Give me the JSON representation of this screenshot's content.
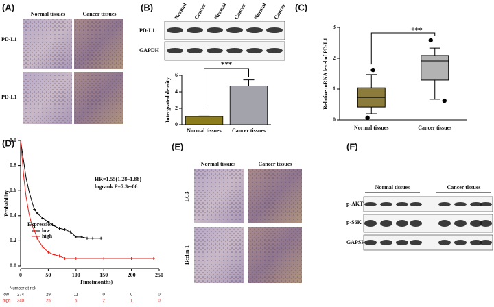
{
  "panel_a": {
    "label": "(A)",
    "columns": [
      "Normal tissues",
      "Cancer tissues"
    ],
    "rows": [
      "PD-L1",
      "PD-L1"
    ]
  },
  "panel_b": {
    "label": "(B)",
    "lanes": [
      "Normal",
      "Cancer",
      "Normal",
      "Cancer",
      "Normal",
      "Cancer"
    ],
    "rows": [
      "PD-L1",
      "GAPDH"
    ]
  },
  "panel_c": {
    "label": "(C)"
  },
  "panel_d": {
    "label": "(D)"
  },
  "panel_e": {
    "label": "(E)",
    "columns": [
      "Normal tissues",
      "Cancer tissues"
    ],
    "rows": [
      "LC3",
      "Beclin-1"
    ]
  },
  "panel_f": {
    "label": "(F)",
    "groups": [
      "Normal tissues",
      "Cancer tissues"
    ],
    "rows": [
      "p-AKT",
      "p-S6K",
      "GAPSH"
    ]
  },
  "chart_data": [
    {
      "type": "bar",
      "ylabel": "Intergrated density",
      "categories": [
        "Normal tissues",
        "Cancer tissues"
      ],
      "values": [
        1,
        4.7
      ],
      "errors": [
        0.05,
        0.75
      ],
      "colors": [
        "#8c7c1c",
        "#a3a3ab"
      ],
      "ylim": [
        0,
        6
      ],
      "yticks": [
        0,
        2,
        4,
        6
      ],
      "significance": "***"
    },
    {
      "type": "box",
      "ylabel": "Relative mRNA level of PD-L1",
      "categories": [
        "Normal tissues",
        "Cancer tissues"
      ],
      "boxes": [
        {
          "min": 0.2,
          "q1": 0.42,
          "median": 0.73,
          "q3": 1.04,
          "max": 1.47,
          "outliers": [
            1.62,
            0.07
          ]
        },
        {
          "min": 0.67,
          "q1": 1.29,
          "median": 1.91,
          "q3": 2.09,
          "max": 2.33,
          "outliers": [
            2.58,
            0.62
          ]
        }
      ],
      "colors": [
        "#8c7c3c",
        "#b3b3b3"
      ],
      "ylim": [
        0,
        3
      ],
      "yticks": [
        0,
        1,
        2,
        3
      ],
      "significance": "***"
    },
    {
      "type": "line",
      "ylabel": "Probability",
      "xlabel": "Time(months)",
      "annotations": [
        "HR=1.55(1.28–1.88)",
        "logrank P=7.3e-06"
      ],
      "legend_title": "Expression",
      "series": [
        {
          "name": "low",
          "color": "#000000",
          "x": [
            0,
            5,
            10,
            15,
            20,
            25,
            30,
            40,
            50,
            60,
            70,
            80,
            90,
            100,
            110,
            120,
            130,
            145
          ],
          "values": [
            1,
            0.85,
            0.7,
            0.6,
            0.52,
            0.45,
            0.42,
            0.38,
            0.35,
            0.32,
            0.3,
            0.29,
            0.27,
            0.23,
            0.23,
            0.22,
            0.22,
            0.22
          ]
        },
        {
          "name": "high",
          "color": "#e0201a",
          "x": [
            0,
            3,
            6,
            10,
            15,
            20,
            25,
            30,
            40,
            50,
            60,
            70,
            80,
            100,
            150,
            200,
            240
          ],
          "values": [
            1,
            0.85,
            0.7,
            0.55,
            0.42,
            0.33,
            0.28,
            0.22,
            0.15,
            0.11,
            0.09,
            0.08,
            0.06,
            0.06,
            0.06,
            0.06,
            0.06
          ]
        }
      ],
      "xlim": [
        0,
        250
      ],
      "xticks": [
        0,
        50,
        100,
        150,
        200,
        250
      ],
      "ylim": [
        0,
        1
      ],
      "yticks": [
        {
          "value": 0,
          "label": "0.0"
        },
        0.2,
        0.4,
        0.6,
        0.8,
        {
          "value": 1,
          "label": "1.0"
        }
      ],
      "risk_table": {
        "title": "Number at risk",
        "rows": [
          [
            274,
            29,
            11,
            0,
            0,
            0
          ],
          [
            340,
            25,
            5,
            2,
            1,
            0
          ]
        ]
      }
    }
  ]
}
